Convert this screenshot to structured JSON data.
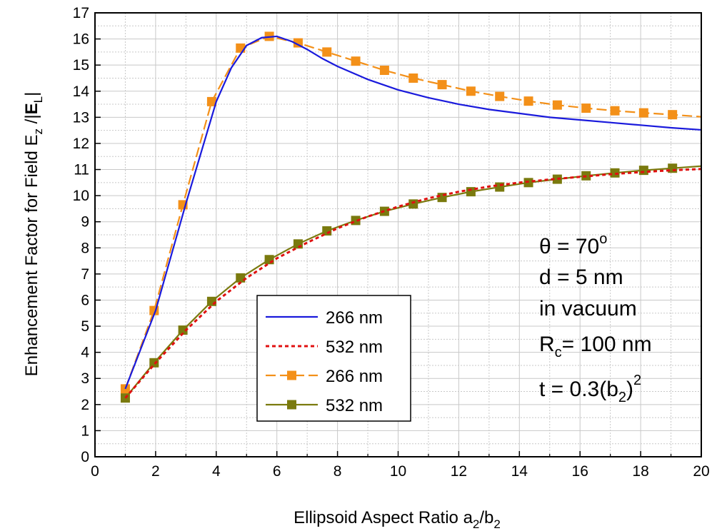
{
  "chart_data": {
    "type": "line",
    "xlabel": {
      "main": "Ellipsoid Aspect Ratio a",
      "sub1": "2",
      "mid": "/b",
      "sub2": "2"
    },
    "ylabel": {
      "main": "Enhancement Factor for Field  E",
      "sub1": "z",
      "mid": " /|",
      "bold": "E",
      "sub2": "L",
      "end": "|"
    },
    "xlim": [
      0,
      20
    ],
    "ylim": [
      0,
      17
    ],
    "xticks": [
      0,
      2,
      4,
      6,
      8,
      10,
      12,
      14,
      16,
      18,
      20
    ],
    "yticks": [
      0,
      1,
      2,
      3,
      4,
      5,
      6,
      7,
      8,
      9,
      10,
      11,
      12,
      13,
      14,
      15,
      16,
      17
    ],
    "grid": true,
    "legend_position": "center-left",
    "series": [
      {
        "name": "266 nm",
        "color": "#1a1adc",
        "style": "solid",
        "marker": "none",
        "x": [
          1,
          2,
          3,
          4,
          4.5,
          5,
          5.5,
          6,
          6.5,
          7,
          7.5,
          8,
          9,
          10,
          11,
          12,
          13,
          14,
          15,
          16,
          17,
          18,
          19,
          20
        ],
        "y": [
          2.6,
          5.6,
          9.7,
          13.6,
          14.9,
          15.75,
          16.05,
          16.1,
          15.9,
          15.6,
          15.25,
          14.95,
          14.45,
          14.05,
          13.75,
          13.5,
          13.3,
          13.15,
          13.0,
          12.9,
          12.8,
          12.7,
          12.6,
          12.52
        ]
      },
      {
        "name": "532 nm",
        "color": "#e01010",
        "style": "dotted",
        "marker": "none",
        "x": [
          1,
          2,
          3,
          4,
          5,
          6,
          7,
          8,
          9,
          10,
          11,
          12,
          13,
          14,
          15,
          16,
          17,
          18,
          19,
          20
        ],
        "y": [
          2.25,
          3.6,
          4.85,
          5.95,
          6.85,
          7.6,
          8.2,
          8.75,
          9.2,
          9.58,
          9.9,
          10.15,
          10.35,
          10.5,
          10.62,
          10.72,
          10.82,
          10.9,
          10.97,
          11.02
        ]
      },
      {
        "name": "266 nm",
        "color": "#f39019",
        "style": "dashed",
        "marker": "square",
        "x": [
          1,
          1.95,
          2.9,
          3.85,
          4.8,
          5.75,
          6.7,
          7.65,
          8.6,
          9.55,
          10.5,
          11.45,
          12.4,
          13.35,
          14.3,
          15.25,
          16.2,
          17.15,
          18.1,
          19.05,
          20
        ],
        "y": [
          2.6,
          5.6,
          9.65,
          13.6,
          15.65,
          16.1,
          15.85,
          15.5,
          15.15,
          14.8,
          14.5,
          14.25,
          14.0,
          13.8,
          13.62,
          13.47,
          13.35,
          13.25,
          13.17,
          13.1,
          13.02
        ]
      },
      {
        "name": "532 nm",
        "color": "#7a7a0e",
        "style": "solid",
        "marker": "square",
        "x": [
          1,
          1.95,
          2.9,
          3.85,
          4.8,
          5.75,
          6.7,
          7.65,
          8.6,
          9.55,
          10.5,
          11.45,
          12.4,
          13.35,
          14.3,
          15.25,
          16.2,
          17.15,
          18.1,
          19.05,
          20
        ],
        "y": [
          2.25,
          3.6,
          4.85,
          5.95,
          6.85,
          7.55,
          8.15,
          8.65,
          9.05,
          9.4,
          9.68,
          9.93,
          10.15,
          10.33,
          10.5,
          10.63,
          10.76,
          10.87,
          10.97,
          11.05,
          11.13
        ]
      }
    ],
    "annotations": {
      "theta": {
        "label": "θ = 70",
        "sup": "o"
      },
      "d": "d = 5 nm",
      "medium": "in vacuum",
      "rc": {
        "main": "R",
        "sub": "c",
        "rest": "= 100 nm"
      },
      "t": {
        "main": "t = 0.3(b",
        "sub": "2",
        "close": ")",
        "sup": "2"
      }
    }
  }
}
